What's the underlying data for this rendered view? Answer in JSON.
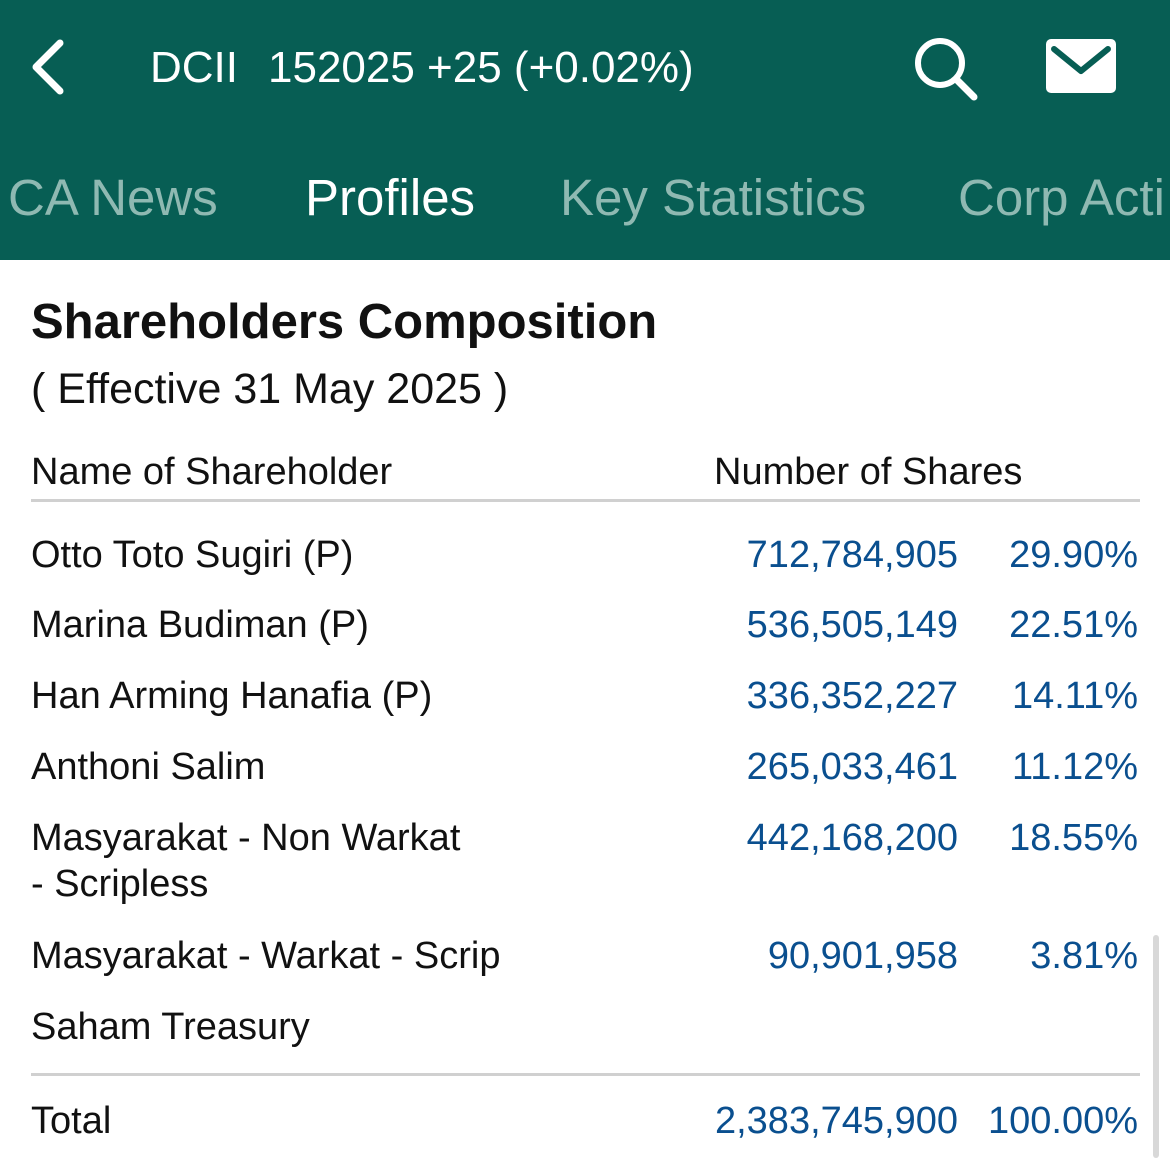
{
  "header": {
    "ticker_code": "DCII",
    "ticker_price_change": "152025 +25 (+0.02%)",
    "icons": {
      "back": "chevron-left-icon",
      "search": "search-icon",
      "mail": "mail-icon"
    },
    "bg_color": "#075e54"
  },
  "tabs": [
    {
      "label": "CA News",
      "active": false
    },
    {
      "label": "Profiles",
      "active": true
    },
    {
      "label": "Key Statistics",
      "active": false
    },
    {
      "label": "Corp Acti",
      "active": false
    }
  ],
  "section": {
    "title": "Shareholders Composition",
    "subtitle": "( Effective 31 May 2025 )",
    "col_name": "Name of Shareholder",
    "col_shares": "Number of Shares"
  },
  "rows": [
    {
      "name": "Otto Toto Sugiri (P)",
      "shares": "712,784,905",
      "pct": "29.90%"
    },
    {
      "name": "Marina Budiman (P)",
      "shares": "536,505,149",
      "pct": "22.51%"
    },
    {
      "name": "Han Arming Hanafia (P)",
      "shares": "336,352,227",
      "pct": "14.11%"
    },
    {
      "name": "Anthoni Salim",
      "shares": "265,033,461",
      "pct": "11.12%"
    },
    {
      "name": "Masyarakat - Non Warkat\n- Scripless",
      "shares": "442,168,200",
      "pct": "18.55%"
    },
    {
      "name": "Masyarakat - Warkat - Scrip",
      "shares": "90,901,958",
      "pct": "3.81%"
    },
    {
      "name": "Saham Treasury",
      "shares": "",
      "pct": ""
    }
  ],
  "total": {
    "label": "Total",
    "shares": "2,383,745,900",
    "pct": "100.00%"
  },
  "colors": {
    "value_text": "#0a4f8f",
    "tab_inactive": "#8fb9b2"
  }
}
